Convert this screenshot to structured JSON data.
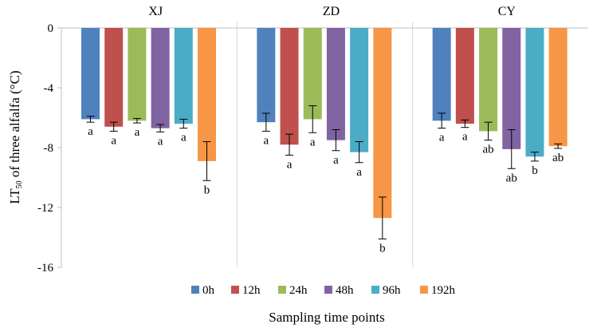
{
  "chart_data": {
    "type": "bar",
    "ylabel_main": "LT",
    "ylabel_sub": "50",
    "ylabel_rest": " of three alfalfa (°C)",
    "xlabel": "Sampling time points",
    "ylim": [
      -16,
      0
    ],
    "yticks": [
      0,
      -4,
      -8,
      -12,
      -16
    ],
    "ytick_labels": [
      "0",
      "-4",
      "-8",
      "-12",
      "-16"
    ],
    "groups": [
      "XJ",
      "ZD",
      "CY"
    ],
    "series": [
      {
        "name": "0h",
        "color": "#4f81bd",
        "values": [
          -6.1,
          -6.3,
          -6.2
        ],
        "errors": [
          0.2,
          0.6,
          0.5
        ],
        "letters": [
          "a",
          "a",
          "a"
        ]
      },
      {
        "name": "12h",
        "color": "#c0504d",
        "values": [
          -6.6,
          -7.8,
          -6.4
        ],
        "errors": [
          0.3,
          0.7,
          0.25
        ],
        "letters": [
          "a",
          "a",
          "a"
        ]
      },
      {
        "name": "24h",
        "color": "#9bbb59",
        "values": [
          -6.2,
          -6.1,
          -6.9
        ],
        "errors": [
          0.15,
          0.9,
          0.6
        ],
        "letters": [
          "a",
          "a",
          "ab"
        ]
      },
      {
        "name": "48h",
        "color": "#8064a2",
        "values": [
          -6.7,
          -7.5,
          -8.1
        ],
        "errors": [
          0.25,
          0.7,
          1.3
        ],
        "letters": [
          "a",
          "a",
          "ab"
        ]
      },
      {
        "name": "96h",
        "color": "#4bacc6",
        "values": [
          -6.4,
          -8.3,
          -8.6
        ],
        "errors": [
          0.3,
          0.7,
          0.3
        ],
        "letters": [
          "a",
          "a",
          "b"
        ]
      },
      {
        "name": "192h",
        "color": "#f79646",
        "values": [
          -8.9,
          -12.7,
          -7.9
        ],
        "errors": [
          1.3,
          1.4,
          0.15
        ],
        "letters": [
          "b",
          "b",
          "ab"
        ]
      }
    ]
  }
}
